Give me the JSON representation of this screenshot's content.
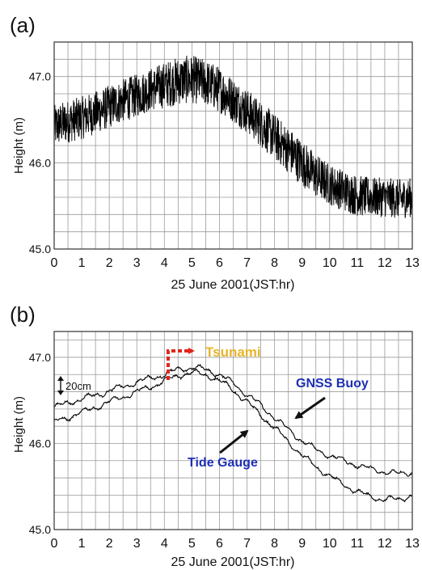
{
  "panels": [
    {
      "label": "(a)"
    },
    {
      "label": "(b)"
    }
  ],
  "chart_data": [
    {
      "type": "line",
      "panel": "(a)",
      "title": "",
      "xlabel": "25 June 2001(JST:hr)",
      "ylabel": "Height (m)",
      "xlim": [
        0,
        13
      ],
      "ylim": [
        45.0,
        47.4
      ],
      "xticks": [
        "0",
        "1",
        "2",
        "3",
        "4",
        "5",
        "6",
        "7",
        "8",
        "9",
        "10",
        "11",
        "12",
        "13"
      ],
      "yticks": [
        "45.0",
        "46.0",
        "47.0"
      ],
      "grid": true,
      "series": [
        {
          "color": "#000000",
          "style": "dense-high-frequency-band",
          "x": [
            0,
            0.5,
            1,
            1.5,
            2,
            2.5,
            3,
            3.5,
            4,
            4.5,
            5,
            5.5,
            6,
            6.5,
            7,
            7.5,
            8,
            8.5,
            9,
            9.5,
            10,
            10.5,
            11,
            11.5,
            12,
            12.5,
            13
          ],
          "center": [
            46.42,
            46.48,
            46.52,
            46.58,
            46.65,
            46.72,
            46.78,
            46.85,
            46.9,
            46.95,
            46.97,
            46.93,
            46.85,
            46.73,
            46.6,
            46.45,
            46.3,
            46.15,
            46.0,
            45.85,
            45.75,
            45.68,
            45.62,
            45.6,
            45.6,
            45.58,
            45.6
          ],
          "band_halfwidth": [
            0.25,
            0.25,
            0.25,
            0.25,
            0.25,
            0.25,
            0.25,
            0.25,
            0.27,
            0.28,
            0.28,
            0.27,
            0.27,
            0.26,
            0.26,
            0.27,
            0.27,
            0.27,
            0.27,
            0.26,
            0.24,
            0.24,
            0.24,
            0.23,
            0.23,
            0.23,
            0.23
          ]
        }
      ]
    },
    {
      "type": "line",
      "panel": "(b)",
      "title": "",
      "xlabel": "25 June 2001(JST:hr)",
      "ylabel": "Height (m)",
      "xlim": [
        0,
        13
      ],
      "ylim": [
        45.0,
        47.3
      ],
      "xticks": [
        "0",
        "1",
        "2",
        "3",
        "4",
        "5",
        "6",
        "7",
        "8",
        "9",
        "10",
        "11",
        "12",
        "13"
      ],
      "yticks": [
        "45.0",
        "46.0",
        "47.0"
      ],
      "grid": true,
      "series": [
        {
          "name": "GNSS Buoy",
          "color": "#000000",
          "x": [
            0,
            0.5,
            1,
            1.5,
            2,
            2.5,
            3,
            3.5,
            4,
            4.5,
            5,
            5.5,
            6,
            6.5,
            7,
            7.5,
            8,
            8.5,
            9,
            9.5,
            10,
            10.5,
            11,
            11.5,
            12,
            12.5,
            13
          ],
          "values": [
            46.42,
            46.47,
            46.52,
            46.56,
            46.61,
            46.66,
            46.71,
            46.76,
            46.8,
            46.86,
            46.88,
            46.86,
            46.8,
            46.7,
            46.57,
            46.44,
            46.3,
            46.16,
            46.03,
            45.93,
            45.86,
            45.8,
            45.75,
            45.7,
            45.67,
            45.65,
            45.67
          ]
        },
        {
          "name": "Tide Gauge",
          "color": "#000000",
          "x": [
            0,
            0.5,
            1,
            1.5,
            2,
            2.5,
            3,
            3.5,
            4,
            4.5,
            5,
            5.5,
            6,
            6.5,
            7,
            7.5,
            8,
            8.5,
            9,
            9.5,
            10,
            10.5,
            11,
            11.5,
            12,
            12.5,
            13
          ],
          "values": [
            46.25,
            46.3,
            46.36,
            46.42,
            46.48,
            46.54,
            46.6,
            46.66,
            46.72,
            46.79,
            46.82,
            46.8,
            46.73,
            46.62,
            46.48,
            46.33,
            46.18,
            46.02,
            45.86,
            45.73,
            45.62,
            45.52,
            45.44,
            45.38,
            45.35,
            45.35,
            45.4
          ]
        }
      ],
      "annotations": [
        {
          "text": "Tsunami",
          "color": "#e8b52a",
          "arrow_color": "#e0261c",
          "x": 4.2,
          "y": 46.85
        },
        {
          "text": "20cm",
          "type": "scale-bar",
          "size_m": 0.2
        },
        {
          "text": "GNSS Buoy",
          "color": "#1d2fb5"
        },
        {
          "text": "Tide Gauge",
          "color": "#1d2fb5"
        }
      ]
    }
  ]
}
